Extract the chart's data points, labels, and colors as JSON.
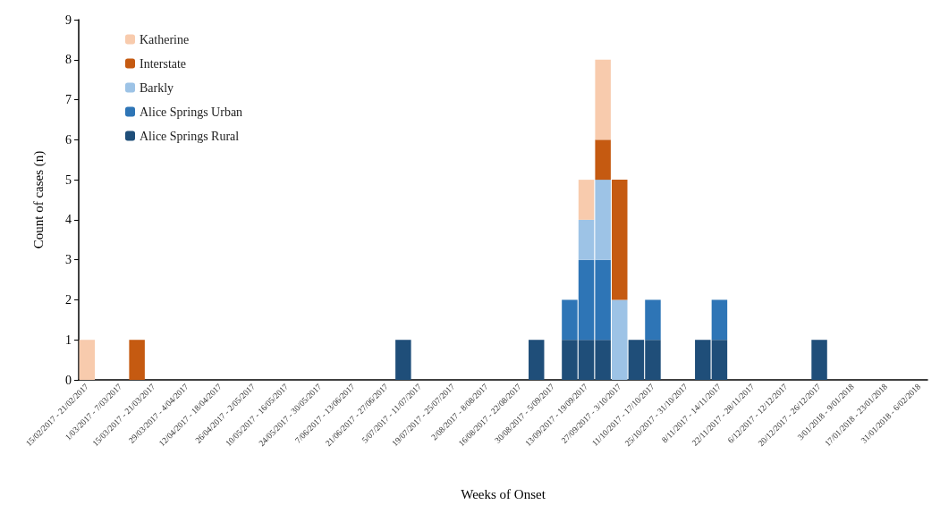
{
  "chart_data": {
    "type": "bar",
    "stacked": true,
    "xlabel": "Weeks of Onset",
    "ylabel": "Count of cases (n)",
    "categories": [
      "15/02/2017 - 21/02/2017",
      null,
      "1/03/2017 - 7/03/2017",
      null,
      "15/03/2017 - 21/03/2017",
      null,
      "29/03/2017 - 4/04/2017",
      null,
      "12/04/2017 - 18/04/2017",
      null,
      "26/04/2017 - 2/05/2017",
      null,
      "10/05/2017 - 16/05/2017",
      null,
      "24/05/2017 - 30/05/2017",
      null,
      "7/06/2017 - 13/06/2017",
      null,
      "21/06/2017 - 27/06/2017",
      null,
      "5/07/2017 - 11/07/2017",
      null,
      "19/07/2017 - 25/07/2017",
      null,
      "2/08/2017 - 8/08/2017",
      null,
      "16/08/2017 - 22/08/2017",
      null,
      "30/08/2017 - 5/09/2017",
      null,
      "13/09/2017 - 19/09/2017",
      null,
      "27/09/2017 - 3/10/2017",
      null,
      "11/10/2017 - 17/10/2017",
      null,
      "25/10/2017 - 31/10/2017",
      null,
      "8/11/2017 - 14/11/2017",
      null,
      "22/11/2017 - 28/11/2017",
      null,
      "6/12/2017 - 12/12/2017",
      null,
      "20/12/2017 - 26/12/2017",
      null,
      "3/01/2018 - 9/01/2018",
      null,
      "17/01/2018 - 23/01/2018",
      null,
      "31/01/2018 - 6/02/2018"
    ],
    "series": [
      {
        "name": "Alice Springs Rural",
        "color": "#1f4e79",
        "values": [
          0,
          0,
          0,
          0,
          0,
          0,
          0,
          0,
          0,
          0,
          0,
          0,
          0,
          0,
          0,
          0,
          0,
          0,
          0,
          1,
          0,
          0,
          0,
          0,
          0,
          0,
          0,
          1,
          0,
          1,
          1,
          1,
          0,
          1,
          1,
          0,
          0,
          1,
          1,
          0,
          0,
          0,
          0,
          0,
          1,
          0,
          0,
          0,
          0,
          0,
          0
        ]
      },
      {
        "name": "Alice Springs Urban",
        "color": "#2e75b6",
        "values": [
          0,
          0,
          0,
          0,
          0,
          0,
          0,
          0,
          0,
          0,
          0,
          0,
          0,
          0,
          0,
          0,
          0,
          0,
          0,
          0,
          0,
          0,
          0,
          0,
          0,
          0,
          0,
          0,
          0,
          1,
          2,
          2,
          0,
          0,
          1,
          0,
          0,
          0,
          1,
          0,
          0,
          0,
          0,
          0,
          0,
          0,
          0,
          0,
          0,
          0,
          0
        ]
      },
      {
        "name": "Barkly",
        "color": "#9dc3e6",
        "values": [
          0,
          0,
          0,
          0,
          0,
          0,
          0,
          0,
          0,
          0,
          0,
          0,
          0,
          0,
          0,
          0,
          0,
          0,
          0,
          0,
          0,
          0,
          0,
          0,
          0,
          0,
          0,
          0,
          0,
          0,
          1,
          2,
          2,
          0,
          0,
          0,
          0,
          0,
          0,
          0,
          0,
          0,
          0,
          0,
          0,
          0,
          0,
          0,
          0,
          0,
          0
        ]
      },
      {
        "name": "Interstate",
        "color": "#c55a11",
        "values": [
          0,
          0,
          0,
          1,
          0,
          0,
          0,
          0,
          0,
          0,
          0,
          0,
          0,
          0,
          0,
          0,
          0,
          0,
          0,
          0,
          0,
          0,
          0,
          0,
          0,
          0,
          0,
          0,
          0,
          0,
          0,
          1,
          3,
          0,
          0,
          0,
          0,
          0,
          0,
          0,
          0,
          0,
          0,
          0,
          0,
          0,
          0,
          0,
          0,
          0,
          0
        ]
      },
      {
        "name": "Katherine",
        "color": "#f8cbad",
        "values": [
          1,
          0,
          0,
          0,
          0,
          0,
          0,
          0,
          0,
          0,
          0,
          0,
          0,
          0,
          0,
          0,
          0,
          0,
          0,
          0,
          0,
          0,
          0,
          0,
          0,
          0,
          0,
          0,
          0,
          0,
          1,
          2,
          0,
          0,
          0,
          0,
          0,
          0,
          0,
          0,
          0,
          0,
          0,
          0,
          0,
          0,
          0,
          0,
          0,
          0,
          0
        ]
      }
    ],
    "ylim": [
      0,
      9
    ],
    "yticks": [
      0,
      1,
      2,
      3,
      4,
      5,
      6,
      7,
      8,
      9
    ],
    "grid": false,
    "legend": "top left"
  }
}
